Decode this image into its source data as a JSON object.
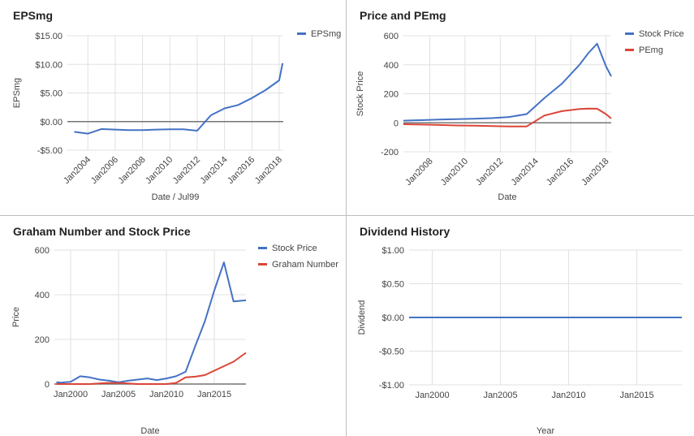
{
  "chart_data": [
    {
      "type": "line",
      "title": "EPSmg",
      "xlabel": "Date / Jul99",
      "ylabel": "EPSmg",
      "x_axis": "date",
      "xlim": [
        2002.5,
        2018.3
      ],
      "ylim": [
        -5,
        15
      ],
      "y_ticks": [
        -5,
        0,
        5,
        10,
        15
      ],
      "y_tick_labels": [
        "-$5.00",
        "$0.00",
        "$5.00",
        "$10.00",
        "$15.00"
      ],
      "x_ticks": [
        2004,
        2006,
        2008,
        2010,
        2012,
        2014,
        2016,
        2018
      ],
      "x_tick_labels": [
        "Jan2004",
        "Jan2006",
        "Jan2008",
        "Jan2010",
        "Jan2012",
        "Jan2014",
        "Jan2016",
        "Jan2018"
      ],
      "x_tick_rotation": -45,
      "zero_line": true,
      "grid": true,
      "legend_position": "right",
      "series": [
        {
          "name": "EPSmg",
          "color": "#4472c4",
          "x": [
            2003.0,
            2004.0,
            2005.0,
            2006.0,
            2007.0,
            2008.0,
            2009.0,
            2010.0,
            2011.0,
            2012.0,
            2013.0,
            2014.0,
            2015.0,
            2016.0,
            2017.0,
            2018.0,
            2018.25
          ],
          "values": [
            -1.8,
            -2.1,
            -1.3,
            -1.4,
            -1.5,
            -1.5,
            -1.4,
            -1.35,
            -1.35,
            -1.6,
            1.1,
            2.3,
            2.9,
            4.1,
            5.5,
            7.2,
            10.2
          ]
        }
      ]
    },
    {
      "type": "line",
      "title": "Price and PEmg",
      "xlabel": "Date",
      "ylabel": "Stock Price",
      "x_axis": "date",
      "xlim": [
        2006.5,
        2018.3
      ],
      "ylim": [
        -200,
        600
      ],
      "y_ticks": [
        -200,
        0,
        200,
        400,
        600
      ],
      "y_tick_labels": [
        "-200",
        "0",
        "200",
        "400",
        "600"
      ],
      "x_ticks": [
        2008,
        2010,
        2012,
        2014,
        2016,
        2018
      ],
      "x_tick_labels": [
        "Jan2008",
        "Jan2010",
        "Jan2012",
        "Jan2014",
        "Jan2016",
        "Jan2018"
      ],
      "x_tick_rotation": -45,
      "zero_line": true,
      "grid": true,
      "legend_position": "right",
      "series": [
        {
          "name": "Stock Price",
          "color": "#4472c4",
          "x": [
            2006.5,
            2007.5,
            2008.5,
            2009.5,
            2010.5,
            2011.5,
            2012.5,
            2013.5,
            2014.5,
            2015.5,
            2016.5,
            2017.0,
            2017.5,
            2018.0,
            2018.3
          ],
          "values": [
            15,
            18,
            22,
            25,
            28,
            32,
            40,
            60,
            170,
            270,
            400,
            480,
            545,
            390,
            320
          ]
        },
        {
          "name": "PEmg",
          "color": "#db4437",
          "x": [
            2006.5,
            2007.5,
            2008.5,
            2009.5,
            2010.5,
            2011.5,
            2012.5,
            2013.5,
            2014.5,
            2015.5,
            2016.5,
            2017.0,
            2017.5,
            2018.0,
            2018.3
          ],
          "values": [
            -10,
            -12,
            -15,
            -18,
            -20,
            -22,
            -25,
            -25,
            50,
            80,
            95,
            98,
            97,
            60,
            30
          ]
        }
      ]
    },
    {
      "type": "line",
      "title": "Graham Number and Stock Price",
      "xlabel": "Date",
      "ylabel": "Price",
      "x_axis": "date",
      "xlim": [
        1998.3,
        2018.3
      ],
      "ylim": [
        0,
        600
      ],
      "y_ticks": [
        0,
        200,
        400,
        600
      ],
      "y_tick_labels": [
        "0",
        "200",
        "400",
        "600"
      ],
      "x_ticks": [
        2000,
        2005,
        2010,
        2015
      ],
      "x_tick_labels": [
        "Jan2000",
        "Jan2005",
        "Jan2010",
        "Jan2015"
      ],
      "x_tick_rotation": 0,
      "grid": true,
      "legend_position": "right",
      "series": [
        {
          "name": "Stock Price",
          "color": "#4472c4",
          "x": [
            1998.5,
            1999.0,
            2000.0,
            2001.0,
            2002.0,
            2003.0,
            2004.0,
            2005.0,
            2006.0,
            2007.0,
            2008.0,
            2009.0,
            2010.0,
            2011.0,
            2012.0,
            2013.0,
            2014.0,
            2015.0,
            2016.0,
            2017.0,
            2018.3
          ],
          "values": [
            8,
            6,
            10,
            35,
            30,
            20,
            15,
            8,
            15,
            20,
            25,
            18,
            25,
            35,
            55,
            170,
            280,
            420,
            545,
            370,
            375
          ]
        },
        {
          "name": "Graham Number",
          "color": "#db4437",
          "x": [
            1998.5,
            1999.0,
            2000.0,
            2001.0,
            2002.0,
            2003.0,
            2004.0,
            2005.0,
            2006.0,
            2007.0,
            2008.0,
            2009.0,
            2010.0,
            2011.0,
            2012.0,
            2013.0,
            2014.0,
            2015.0,
            2016.0,
            2017.0,
            2018.3
          ],
          "values": [
            0,
            0,
            0,
            0,
            0,
            3,
            5,
            5,
            3,
            0,
            0,
            0,
            0,
            5,
            30,
            33,
            40,
            60,
            80,
            100,
            140
          ]
        }
      ]
    },
    {
      "type": "line",
      "title": "Dividend History",
      "xlabel": "Year",
      "ylabel": "Dividend",
      "x_axis": "date",
      "xlim": [
        1998.3,
        2018.3
      ],
      "ylim": [
        -1,
        1
      ],
      "y_ticks": [
        -1,
        -0.5,
        0,
        0.5,
        1
      ],
      "y_tick_labels": [
        "-$1.00",
        "-$0.50",
        "$0.00",
        "$0.50",
        "$1.00"
      ],
      "x_ticks": [
        2000,
        2005,
        2010,
        2015
      ],
      "x_tick_labels": [
        "Jan2000",
        "Jan2005",
        "Jan2010",
        "Jan2015"
      ],
      "x_tick_rotation": 0,
      "grid": true,
      "legend_position": "none",
      "series": [
        {
          "color": "#4472c4",
          "x": [
            1998.3,
            2018.3
          ],
          "values": [
            0,
            0
          ]
        }
      ]
    }
  ]
}
